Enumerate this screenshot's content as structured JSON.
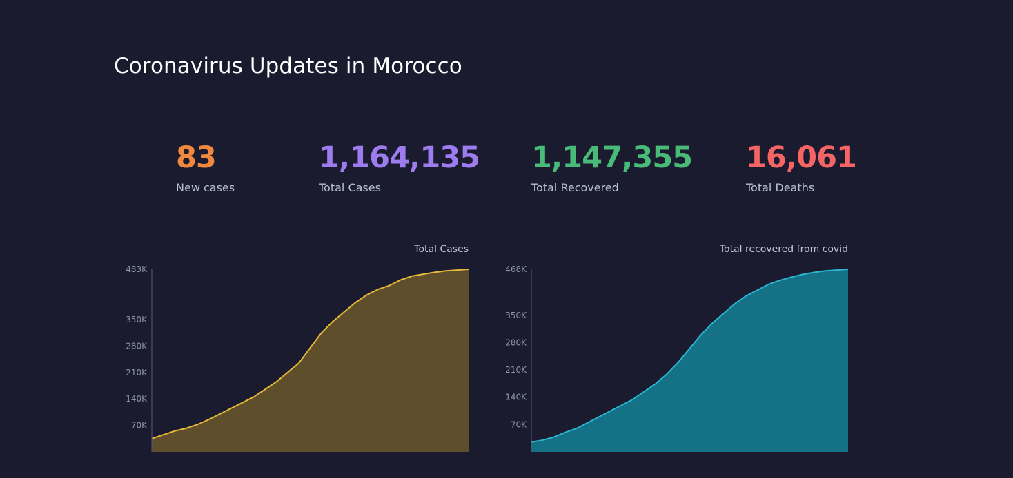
{
  "header": {
    "title": "Coronavirus Updates in Morocco"
  },
  "stats": {
    "new_cases": {
      "value": "83",
      "label": "New cases",
      "color": "#f0883e"
    },
    "total_cases": {
      "value": "1,164,135",
      "label": "Total Cases",
      "color": "#9d7cf0"
    },
    "total_recovered": {
      "value": "1,147,355",
      "label": "Total Recovered",
      "color": "#48bb78"
    },
    "total_deaths": {
      "value": "16,061",
      "label": "Total Deaths",
      "color": "#f56565"
    }
  },
  "chart_data": [
    {
      "type": "area",
      "title": "Total Cases",
      "line_color": "#e6b93a",
      "fill_color": "#5f4e2c",
      "yticks": [
        70000,
        140000,
        210000,
        280000,
        350000,
        483000
      ],
      "ytick_labels": [
        "70K",
        "140K",
        "210K",
        "280K",
        "350K",
        "483K"
      ],
      "ylim": [
        0,
        483000
      ],
      "values": [
        35000,
        45000,
        55000,
        62000,
        72000,
        85000,
        100000,
        115000,
        130000,
        145000,
        165000,
        185000,
        210000,
        235000,
        275000,
        315000,
        345000,
        370000,
        395000,
        415000,
        430000,
        440000,
        455000,
        465000,
        470000,
        475000,
        479000,
        481000,
        483000
      ]
    },
    {
      "type": "area",
      "title": "Total recovered from covid",
      "line_color": "#2ab6d0",
      "fill_color": "#157186",
      "yticks": [
        70000,
        140000,
        210000,
        280000,
        350000,
        468000
      ],
      "ytick_labels": [
        "70K",
        "140K",
        "210K",
        "280K",
        "350K",
        "468K"
      ],
      "ylim": [
        0,
        468000
      ],
      "values": [
        25000,
        30000,
        38000,
        50000,
        60000,
        75000,
        90000,
        105000,
        120000,
        135000,
        155000,
        175000,
        200000,
        230000,
        265000,
        300000,
        330000,
        355000,
        380000,
        400000,
        415000,
        430000,
        440000,
        448000,
        455000,
        460000,
        464000,
        466000,
        468000
      ]
    }
  ]
}
